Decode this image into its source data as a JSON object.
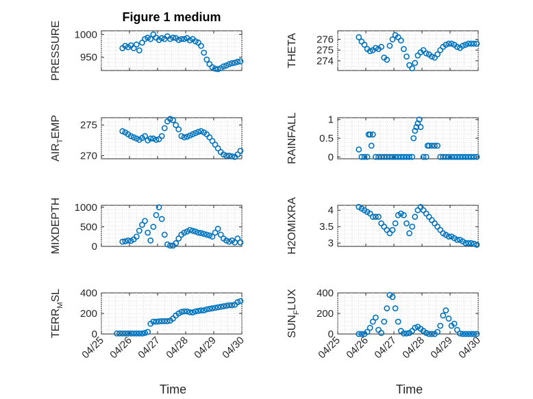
{
  "colors": {
    "marker": "#0072BD",
    "axis": "#262626"
  },
  "chart_data": [
    {
      "type": "scatter",
      "title": "Figure 1 medium",
      "xlabel": "",
      "ylabel_parts": [
        "PRESSURE"
      ],
      "xlim": [
        0,
        5
      ],
      "ylim": [
        921,
        1008
      ],
      "yticks": [
        950,
        1000
      ],
      "ytick_labels": [
        "950",
        "1000"
      ],
      "x": [
        0.75,
        0.85,
        0.95,
        1.05,
        1.15,
        1.25,
        1.35,
        1.45,
        1.55,
        1.65,
        1.75,
        1.85,
        1.95,
        2.05,
        2.15,
        2.25,
        2.35,
        2.45,
        2.55,
        2.65,
        2.75,
        2.85,
        2.95,
        3.05,
        3.15,
        3.25,
        3.35,
        3.45,
        3.55,
        3.65,
        3.75,
        3.85,
        3.95,
        4.05,
        4.15,
        4.25,
        4.35,
        4.45,
        4.55,
        4.65,
        4.75,
        4.85,
        4.95
      ],
      "y": [
        970,
        975,
        972,
        976,
        970,
        978,
        965,
        982,
        990,
        993,
        990,
        1000,
        993,
        988,
        992,
        990,
        996,
        990,
        993,
        992,
        988,
        990,
        990,
        992,
        987,
        990,
        985,
        982,
        975,
        960,
        945,
        935,
        928,
        925,
        924,
        926,
        930,
        932,
        935,
        937,
        938,
        940,
        941
      ]
    },
    {
      "type": "scatter",
      "xlabel": "Time",
      "ylabel_parts": [
        "TERR",
        "M",
        "SL"
      ],
      "xlim": [
        0,
        5
      ],
      "ylim": [
        0,
        400
      ],
      "yticks": [
        0,
        200,
        400
      ],
      "ytick_labels": [
        "0",
        "200",
        "400"
      ],
      "xticks": [
        0,
        1,
        2,
        3,
        4,
        5
      ],
      "xtick_labels": [
        "04/25",
        "04/26",
        "04/27",
        "04/28",
        "04/29",
        "04/30"
      ],
      "x": [
        0.55,
        0.65,
        0.75,
        0.85,
        0.95,
        1.05,
        1.15,
        1.25,
        1.35,
        1.45,
        1.55,
        1.65,
        1.75,
        1.85,
        1.95,
        2.05,
        2.15,
        2.25,
        2.35,
        2.45,
        2.55,
        2.65,
        2.75,
        2.85,
        2.95,
        3.05,
        3.15,
        3.25,
        3.35,
        3.45,
        3.55,
        3.65,
        3.75,
        3.85,
        3.95,
        4.05,
        4.15,
        4.25,
        4.35,
        4.45,
        4.55,
        4.65,
        4.75,
        4.85,
        4.95
      ],
      "y": [
        5,
        5,
        5,
        5,
        5,
        5,
        5,
        5,
        5,
        5,
        10,
        20,
        100,
        120,
        120,
        122,
        125,
        125,
        125,
        130,
        150,
        180,
        200,
        215,
        220,
        220,
        212,
        210,
        220,
        225,
        230,
        230,
        240,
        245,
        250,
        255,
        260,
        265,
        270,
        275,
        280,
        280,
        285,
        310,
        320
      ]
    },
    {
      "type": "scatter",
      "ylabel_parts": [
        "THETA"
      ],
      "xlim": [
        0,
        5
      ],
      "ylim": [
        273.1,
        276.8
      ],
      "yticks": [
        274,
        275,
        276
      ],
      "ytick_labels": [
        "274",
        "275",
        "276"
      ],
      "x": [
        0.75,
        0.85,
        0.95,
        1.05,
        1.15,
        1.25,
        1.35,
        1.45,
        1.55,
        1.65,
        1.75,
        1.85,
        1.95,
        2.05,
        2.15,
        2.25,
        2.35,
        2.45,
        2.55,
        2.65,
        2.75,
        2.85,
        2.95,
        3.05,
        3.15,
        3.25,
        3.35,
        3.45,
        3.55,
        3.65,
        3.75,
        3.85,
        3.95,
        4.05,
        4.15,
        4.25,
        4.35,
        4.45,
        4.55,
        4.65,
        4.75,
        4.85,
        4.95
      ],
      "y": [
        276.2,
        275.8,
        275.5,
        275.1,
        274.9,
        275.0,
        275.2,
        275.1,
        275.3,
        274.3,
        274.1,
        275.4,
        276.0,
        276.4,
        276.2,
        275.9,
        275.1,
        274.4,
        273.6,
        273.3,
        273.8,
        274.5,
        274.8,
        275.0,
        274.7,
        274.6,
        274.4,
        274.3,
        274.6,
        275.0,
        275.3,
        275.5,
        275.6,
        275.6,
        275.5,
        275.3,
        275.2,
        275.4,
        275.5,
        275.6,
        275.6,
        275.6,
        275.6
      ]
    },
    {
      "type": "scatter",
      "ylabel_parts": [
        "AIR",
        "T",
        "EMP"
      ],
      "xlim": [
        0,
        5
      ],
      "ylim": [
        269.5,
        276.2
      ],
      "yticks": [
        270,
        275
      ],
      "ytick_labels": [
        "270",
        "275"
      ],
      "x": [
        0.75,
        0.85,
        0.95,
        1.05,
        1.15,
        1.25,
        1.35,
        1.45,
        1.55,
        1.65,
        1.75,
        1.85,
        1.95,
        2.05,
        2.15,
        2.25,
        2.35,
        2.45,
        2.55,
        2.65,
        2.75,
        2.85,
        2.95,
        3.05,
        3.15,
        3.25,
        3.35,
        3.45,
        3.55,
        3.65,
        3.75,
        3.85,
        3.95,
        4.05,
        4.15,
        4.25,
        4.35,
        4.45,
        4.55,
        4.65,
        4.75,
        4.85,
        4.95
      ],
      "y": [
        274.0,
        273.8,
        273.5,
        273.2,
        273.0,
        272.8,
        272.6,
        272.9,
        273.2,
        272.5,
        272.8,
        272.8,
        272.6,
        272.7,
        273.2,
        274.5,
        275.6,
        276.0,
        275.8,
        275.0,
        274.3,
        273.2,
        273.0,
        273.1,
        273.3,
        273.5,
        273.7,
        273.9,
        274.0,
        273.8,
        273.5,
        273.0,
        272.4,
        271.8,
        271.2,
        270.6,
        270.2,
        270.0,
        270.0,
        269.9,
        269.8,
        270.2,
        270.8
      ]
    },
    {
      "type": "scatter",
      "ylabel_parts": [
        "RAINFALL"
      ],
      "xlim": [
        0,
        5
      ],
      "ylim": [
        -0.05,
        1.05
      ],
      "yticks": [
        0,
        0.5,
        1
      ],
      "ytick_labels": [
        "0",
        "0.5",
        "1"
      ],
      "x": [
        0.75,
        0.85,
        0.95,
        1.05,
        1.1,
        1.15,
        1.2,
        1.25,
        1.35,
        1.45,
        1.55,
        1.65,
        1.75,
        1.85,
        1.95,
        2.05,
        2.15,
        2.25,
        2.35,
        2.45,
        2.55,
        2.65,
        2.7,
        2.75,
        2.8,
        2.85,
        2.9,
        2.95,
        3.05,
        3.15,
        3.2,
        3.25,
        3.35,
        3.45,
        3.55,
        3.65,
        3.75,
        3.85,
        3.95,
        4.05,
        4.15,
        4.25,
        4.35,
        4.45,
        4.55,
        4.65,
        4.75,
        4.85,
        4.95
      ],
      "y": [
        0.2,
        0,
        0,
        0,
        0.6,
        0.6,
        0.3,
        0.6,
        0,
        0,
        0,
        0,
        0,
        0,
        0,
        0,
        0,
        0,
        0,
        0,
        0,
        0,
        0.5,
        0.7,
        0.8,
        0.9,
        1.0,
        0.8,
        0,
        0,
        0.3,
        0.3,
        0.3,
        0.3,
        0.3,
        0,
        0,
        0,
        0,
        0,
        0,
        0,
        0,
        0,
        0,
        0,
        0,
        0,
        0
      ]
    },
    {
      "type": "scatter",
      "ylabel_parts": [
        "MIXDEPTH"
      ],
      "xlim": [
        0,
        5
      ],
      "ylim": [
        0,
        1050
      ],
      "yticks": [
        0,
        500,
        1000
      ],
      "ytick_labels": [
        "0",
        "500",
        "1000"
      ],
      "x": [
        0.75,
        0.85,
        0.95,
        1.05,
        1.15,
        1.25,
        1.35,
        1.45,
        1.55,
        1.65,
        1.75,
        1.85,
        1.95,
        2.05,
        2.15,
        2.25,
        2.35,
        2.45,
        2.55,
        2.65,
        2.75,
        2.85,
        2.95,
        3.05,
        3.15,
        3.25,
        3.35,
        3.45,
        3.55,
        3.65,
        3.75,
        3.85,
        3.95,
        4.05,
        4.15,
        4.25,
        4.35,
        4.45,
        4.55,
        4.65,
        4.75,
        4.85,
        4.95
      ],
      "y": [
        120,
        130,
        150,
        140,
        180,
        250,
        400,
        550,
        650,
        350,
        150,
        500,
        800,
        1000,
        700,
        300,
        50,
        20,
        20,
        80,
        200,
        300,
        350,
        380,
        420,
        400,
        380,
        350,
        340,
        320,
        300,
        280,
        250,
        350,
        450,
        300,
        200,
        150,
        120,
        150,
        100,
        200,
        100
      ]
    },
    {
      "type": "scatter",
      "ylabel_parts": [
        "H2OMIXRA"
      ],
      "xlim": [
        0,
        5
      ],
      "ylim": [
        2.9,
        4.15
      ],
      "yticks": [
        3,
        3.5,
        4
      ],
      "ytick_labels": [
        "3",
        "3.5",
        "4"
      ],
      "x": [
        0.75,
        0.85,
        0.95,
        1.05,
        1.15,
        1.25,
        1.35,
        1.45,
        1.55,
        1.65,
        1.75,
        1.85,
        1.95,
        2.05,
        2.15,
        2.25,
        2.35,
        2.45,
        2.55,
        2.65,
        2.75,
        2.85,
        2.95,
        3.05,
        3.15,
        3.25,
        3.35,
        3.45,
        3.55,
        3.65,
        3.75,
        3.85,
        3.95,
        4.05,
        4.15,
        4.25,
        4.35,
        4.45,
        4.55,
        4.65,
        4.75,
        4.85,
        4.95
      ],
      "y": [
        4.1,
        4.05,
        4.0,
        3.95,
        3.9,
        3.8,
        3.8,
        3.8,
        3.6,
        3.5,
        3.4,
        3.3,
        3.4,
        3.6,
        3.85,
        3.9,
        3.85,
        3.6,
        3.3,
        3.5,
        3.8,
        4.0,
        4.1,
        4.0,
        3.9,
        3.8,
        3.7,
        3.6,
        3.5,
        3.4,
        3.3,
        3.25,
        3.2,
        3.2,
        3.15,
        3.1,
        3.1,
        3.05,
        3.0,
        3.0,
        3.0,
        2.98,
        2.95
      ]
    },
    {
      "type": "scatter",
      "xlabel": "Time",
      "ylabel_parts": [
        "SUN",
        "F",
        "LUX"
      ],
      "xlim": [
        0,
        5
      ],
      "ylim": [
        0,
        400
      ],
      "yticks": [
        0,
        200,
        400
      ],
      "ytick_labels": [
        "0",
        "200",
        "400"
      ],
      "xticks": [
        0,
        1,
        2,
        3,
        4,
        5
      ],
      "xtick_labels": [
        "04/25",
        "04/26",
        "04/27",
        "04/28",
        "04/29",
        "04/30"
      ],
      "x": [
        0.75,
        0.85,
        0.95,
        1.05,
        1.15,
        1.25,
        1.35,
        1.45,
        1.55,
        1.65,
        1.75,
        1.85,
        1.95,
        2.05,
        2.15,
        2.25,
        2.35,
        2.45,
        2.55,
        2.65,
        2.75,
        2.85,
        2.95,
        3.05,
        3.15,
        3.25,
        3.35,
        3.45,
        3.55,
        3.65,
        3.75,
        3.85,
        3.95,
        4.05,
        4.15,
        4.25,
        4.35,
        4.45,
        4.55,
        4.65,
        4.75,
        4.85,
        4.95
      ],
      "y": [
        0,
        0,
        0,
        20,
        60,
        120,
        160,
        40,
        10,
        120,
        250,
        380,
        360,
        250,
        120,
        30,
        5,
        5,
        10,
        30,
        60,
        70,
        50,
        30,
        10,
        0,
        0,
        0,
        20,
        80,
        180,
        230,
        150,
        80,
        100,
        40,
        5,
        0,
        0,
        0,
        0,
        0,
        0
      ]
    }
  ]
}
